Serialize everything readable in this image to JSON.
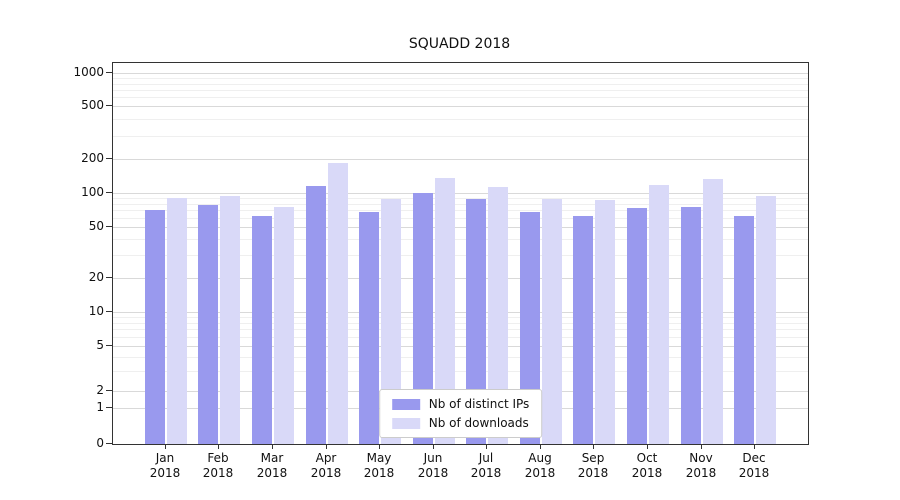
{
  "chart_data": {
    "type": "bar",
    "title": "SQUADD 2018",
    "categories": [
      "Jan 2018",
      "Feb 2018",
      "Mar 2018",
      "Apr 2018",
      "May 2018",
      "Jun 2018",
      "Jul 2018",
      "Aug 2018",
      "Sep 2018",
      "Oct 2018",
      "Nov 2018",
      "Dec 2018"
    ],
    "series": [
      {
        "name": "Nb of distinct IPs",
        "color": "#9999ee",
        "values": [
          70,
          78,
          62,
          115,
          68,
          100,
          88,
          68,
          62,
          74,
          75,
          62
        ]
      },
      {
        "name": "Nb of downloads",
        "color": "#d9d9f8",
        "values": [
          90,
          95,
          75,
          185,
          88,
          135,
          112,
          88,
          87,
          118,
          132,
          94
        ]
      }
    ],
    "yticks": [
      0,
      1,
      2,
      5,
      10,
      20,
      50,
      100,
      200,
      500,
      1000
    ],
    "yscale": "symlog",
    "ylim": [
      0,
      1000
    ],
    "grid": true,
    "legend_position": "lower center"
  }
}
